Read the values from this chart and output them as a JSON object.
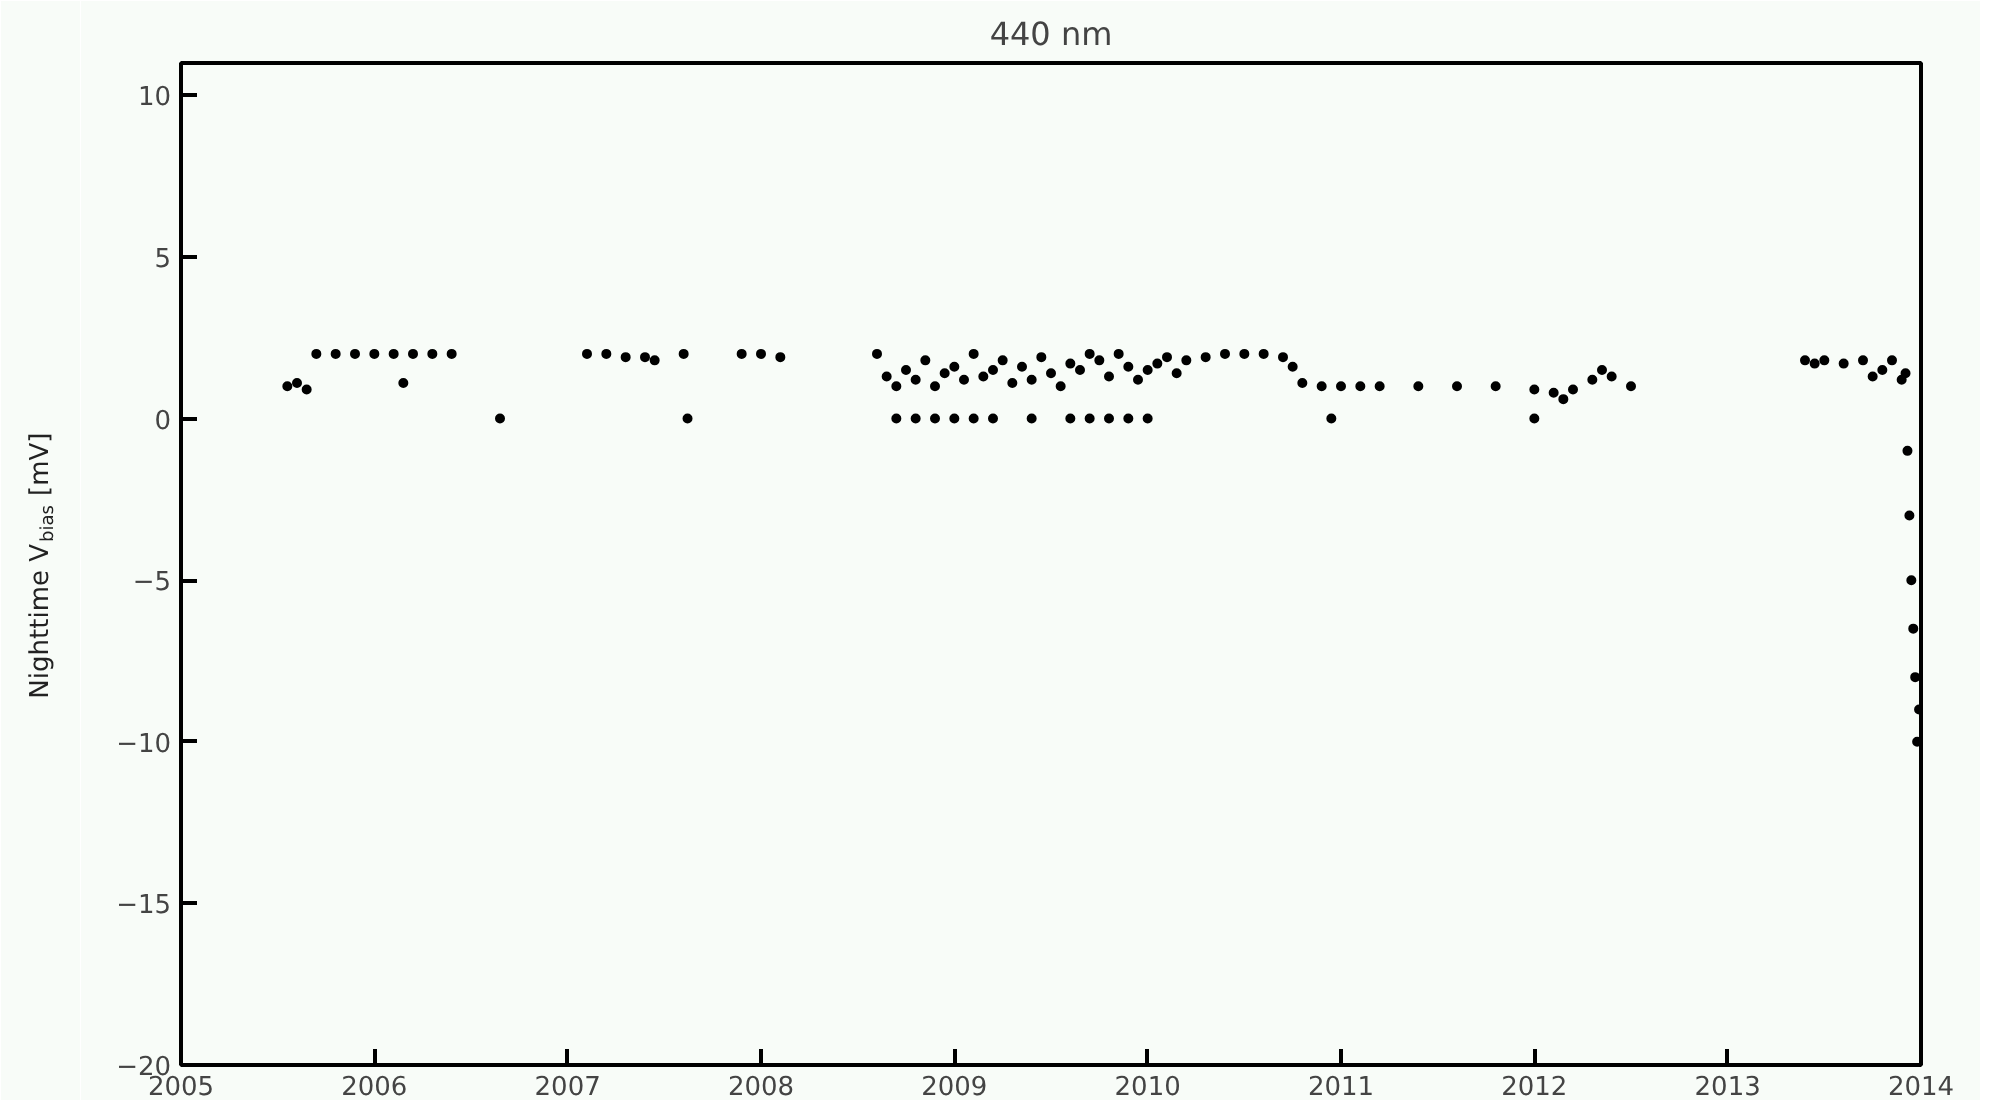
{
  "chart_data": {
    "type": "scatter",
    "title": "440 nm",
    "ylabel": "Nighttime V$_{bias}$ [mV]",
    "xlim": [
      2005,
      2014
    ],
    "xticks": [
      2005,
      2006,
      2007,
      2008,
      2009,
      2010,
      2011,
      2012,
      2013,
      2014
    ],
    "ylim": [
      -20,
      11
    ],
    "yticks": [
      -20,
      -15,
      -10,
      -5,
      0,
      5,
      10
    ],
    "grid": false,
    "marker": "circle",
    "series": [
      {
        "color": "#000000",
        "x": [
          2005.55,
          2005.6,
          2005.65,
          2005.7,
          2005.8,
          2005.9,
          2006.0,
          2006.1,
          2006.15,
          2006.2,
          2006.3,
          2006.4,
          2006.65,
          2007.1,
          2007.2,
          2007.3,
          2007.4,
          2007.45,
          2007.6,
          2007.62,
          2007.9,
          2008.0,
          2008.1,
          2008.6,
          2008.65,
          2008.7,
          2008.75,
          2008.8,
          2008.85,
          2008.9,
          2008.95,
          2009.0,
          2009.05,
          2009.1,
          2009.15,
          2009.2,
          2009.25,
          2009.3,
          2009.35,
          2009.4,
          2009.45,
          2009.5,
          2009.55,
          2009.6,
          2009.65,
          2009.7,
          2009.75,
          2009.8,
          2009.85,
          2009.9,
          2009.95,
          2010.0,
          2010.05,
          2010.1,
          2010.15,
          2010.2,
          2010.3,
          2010.4,
          2010.5,
          2010.6,
          2010.7,
          2010.75,
          2010.8,
          2010.9,
          2011.0,
          2011.1,
          2011.2,
          2011.4,
          2011.6,
          2011.8,
          2012.0,
          2012.1,
          2012.15,
          2012.2,
          2012.3,
          2012.35,
          2012.4,
          2012.5,
          2013.4,
          2013.45,
          2013.5,
          2013.6,
          2013.7,
          2013.75,
          2013.8,
          2013.85,
          2013.9,
          2013.92,
          2013.93,
          2013.94,
          2013.95,
          2013.96,
          2013.97,
          2013.98,
          2013.99,
          2008.7,
          2008.8,
          2008.9,
          2009.0,
          2009.1,
          2009.2,
          2009.4,
          2009.6,
          2009.7,
          2009.8,
          2009.9,
          2010.0,
          2010.95,
          2012.0
        ],
        "values": [
          1.0,
          1.1,
          0.9,
          2.0,
          2.0,
          2.0,
          2.0,
          2.0,
          1.1,
          2.0,
          2.0,
          2.0,
          0.0,
          2.0,
          2.0,
          1.9,
          1.9,
          1.8,
          2.0,
          0.0,
          2.0,
          2.0,
          1.9,
          2.0,
          1.3,
          1.0,
          1.5,
          1.2,
          1.8,
          1.0,
          1.4,
          1.6,
          1.2,
          2.0,
          1.3,
          1.5,
          1.8,
          1.1,
          1.6,
          1.2,
          1.9,
          1.4,
          1.0,
          1.7,
          1.5,
          2.0,
          1.8,
          1.3,
          2.0,
          1.6,
          1.2,
          1.5,
          1.7,
          1.9,
          1.4,
          1.8,
          1.9,
          2.0,
          2.0,
          2.0,
          1.9,
          1.6,
          1.1,
          1.0,
          1.0,
          1.0,
          1.0,
          1.0,
          1.0,
          1.0,
          0.9,
          0.8,
          0.6,
          0.9,
          1.2,
          1.5,
          1.3,
          1.0,
          1.8,
          1.7,
          1.8,
          1.7,
          1.8,
          1.3,
          1.5,
          1.8,
          1.2,
          1.4,
          -1.0,
          -3.0,
          -5.0,
          -6.5,
          -8.0,
          -10.0,
          -9.0,
          0.0,
          0.0,
          0.0,
          0.0,
          0.0,
          0.0,
          0.0,
          0.0,
          0.0,
          0.0,
          0.0,
          0.0,
          0.0,
          0.0
        ]
      }
    ]
  }
}
